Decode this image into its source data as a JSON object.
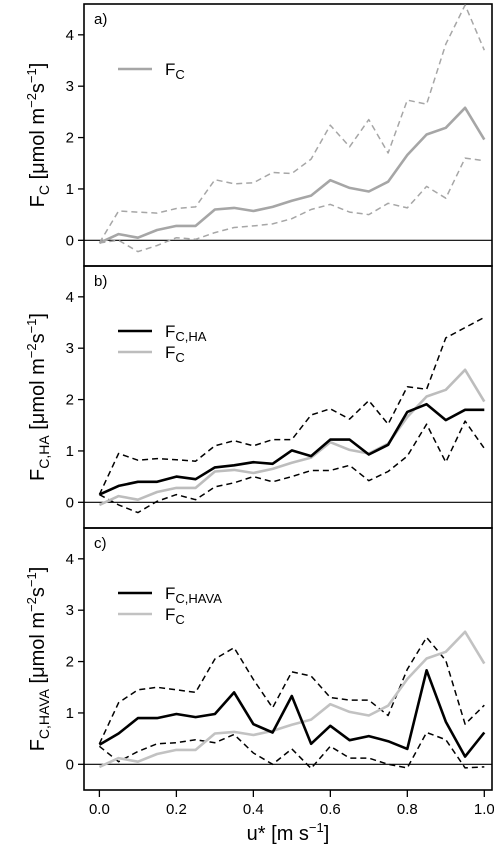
{
  "chart_data": [
    {
      "type": "line",
      "panel_label": "a)",
      "ylabel_main": "F",
      "ylabel_sub": "C",
      "ylabel_unit": "[μmol m",
      "ylabel_exp1": "−2",
      "ylabel_s": "s",
      "ylabel_exp2": "−1",
      "ylabel_close": "]",
      "ylim": [
        -0.5,
        4.6
      ],
      "yticks": [
        "0",
        "1",
        "2",
        "3",
        "4"
      ],
      "legend_position": "top-left",
      "x": [
        0.0,
        0.05,
        0.1,
        0.15,
        0.2,
        0.25,
        0.3,
        0.35,
        0.4,
        0.45,
        0.5,
        0.55,
        0.6,
        0.65,
        0.7,
        0.75,
        0.8,
        0.85,
        0.9,
        0.95,
        1.0
      ],
      "series": [
        {
          "name": "F",
          "name_sub": "C",
          "style": "solid",
          "color": "#a6a6a6",
          "in_legend": true,
          "values": [
            -0.05,
            0.12,
            0.05,
            0.2,
            0.28,
            0.28,
            0.6,
            0.63,
            0.57,
            0.65,
            0.77,
            0.87,
            1.17,
            1.02,
            0.95,
            1.14,
            1.66,
            2.06,
            2.19,
            2.58,
            1.96
          ]
        },
        {
          "name": "",
          "style": "dashed",
          "color": "#a6a6a6",
          "in_legend": false,
          "values": [
            -0.05,
            0.57,
            0.55,
            0.53,
            0.62,
            0.65,
            1.18,
            1.1,
            1.12,
            1.32,
            1.3,
            1.58,
            2.24,
            1.82,
            2.35,
            1.7,
            2.73,
            2.65,
            3.82,
            4.58,
            3.7
          ]
        },
        {
          "name": "",
          "style": "dashed",
          "color": "#a6a6a6",
          "in_legend": false,
          "values": [
            -0.05,
            0.0,
            -0.22,
            -0.1,
            0.05,
            0.02,
            0.15,
            0.25,
            0.28,
            0.32,
            0.42,
            0.6,
            0.7,
            0.55,
            0.5,
            0.72,
            0.63,
            1.05,
            0.82,
            1.6,
            1.55
          ]
        }
      ]
    },
    {
      "type": "line",
      "panel_label": "b)",
      "ylabel_main": "F",
      "ylabel_sub": "C,HA",
      "ylabel_unit": "[μmol m",
      "ylabel_exp1": "−2",
      "ylabel_s": "s",
      "ylabel_exp2": "−1",
      "ylabel_close": "]",
      "ylim": [
        -0.5,
        4.6
      ],
      "yticks": [
        "0",
        "1",
        "2",
        "3",
        "4"
      ],
      "legend_position": "top-left",
      "x": [
        0.0,
        0.05,
        0.1,
        0.15,
        0.2,
        0.25,
        0.3,
        0.35,
        0.4,
        0.45,
        0.5,
        0.55,
        0.6,
        0.65,
        0.7,
        0.75,
        0.8,
        0.85,
        0.9,
        0.95,
        1.0
      ],
      "series": [
        {
          "name": "F",
          "name_sub": "C,HA",
          "style": "solid",
          "color": "#000000",
          "in_legend": true,
          "values": [
            0.15,
            0.32,
            0.4,
            0.4,
            0.5,
            0.45,
            0.68,
            0.72,
            0.78,
            0.75,
            1.01,
            0.9,
            1.22,
            1.22,
            0.93,
            1.12,
            1.76,
            1.91,
            1.6,
            1.8,
            1.8
          ]
        },
        {
          "name": "F",
          "name_sub": "C",
          "style": "solid",
          "color": "#bdbdbd",
          "in_legend": true,
          "values": [
            -0.05,
            0.12,
            0.05,
            0.2,
            0.28,
            0.28,
            0.6,
            0.63,
            0.57,
            0.65,
            0.77,
            0.87,
            1.17,
            1.02,
            0.95,
            1.14,
            1.66,
            2.06,
            2.19,
            2.58,
            1.96
          ]
        },
        {
          "name": "",
          "style": "dashed",
          "color": "#000000",
          "in_legend": false,
          "values": [
            0.15,
            0.95,
            0.82,
            0.85,
            0.83,
            0.8,
            1.1,
            1.2,
            1.1,
            1.22,
            1.22,
            1.7,
            1.82,
            1.62,
            1.98,
            1.52,
            2.25,
            2.2,
            3.2,
            3.4,
            3.6
          ]
        },
        {
          "name": "",
          "style": "dashed",
          "color": "#000000",
          "in_legend": false,
          "values": [
            0.15,
            -0.05,
            -0.2,
            0.02,
            0.15,
            0.05,
            0.3,
            0.38,
            0.5,
            0.4,
            0.5,
            0.62,
            0.62,
            0.72,
            0.42,
            0.6,
            0.9,
            1.52,
            0.78,
            1.58,
            1.05
          ]
        }
      ]
    },
    {
      "type": "line",
      "panel_label": "c)",
      "ylabel_main": "F",
      "ylabel_sub": "C,HAVA",
      "ylabel_unit": "[μmol m",
      "ylabel_exp1": "−2",
      "ylabel_s": "s",
      "ylabel_exp2": "−1",
      "ylabel_close": "]",
      "ylim": [
        -0.5,
        4.6
      ],
      "yticks": [
        "0",
        "1",
        "2",
        "3",
        "4"
      ],
      "legend_position": "top-left",
      "x": [
        0.0,
        0.05,
        0.1,
        0.15,
        0.2,
        0.25,
        0.3,
        0.35,
        0.4,
        0.45,
        0.5,
        0.55,
        0.6,
        0.65,
        0.7,
        0.75,
        0.8,
        0.85,
        0.9,
        0.95,
        1.0
      ],
      "series": [
        {
          "name": "F",
          "name_sub": "C,HAVA",
          "style": "solid",
          "color": "#000000",
          "in_legend": true,
          "values": [
            0.38,
            0.6,
            0.9,
            0.9,
            0.98,
            0.92,
            0.98,
            1.4,
            0.78,
            0.62,
            1.33,
            0.4,
            0.75,
            0.47,
            0.55,
            0.45,
            0.3,
            1.83,
            0.83,
            0.15,
            0.62
          ]
        },
        {
          "name": "F",
          "name_sub": "C",
          "style": "solid",
          "color": "#c2c2c2",
          "in_legend": true,
          "values": [
            -0.05,
            0.12,
            0.05,
            0.2,
            0.28,
            0.28,
            0.6,
            0.63,
            0.57,
            0.65,
            0.77,
            0.87,
            1.17,
            1.02,
            0.95,
            1.14,
            1.66,
            2.06,
            2.19,
            2.58,
            1.96
          ]
        },
        {
          "name": "",
          "style": "dashed",
          "color": "#000000",
          "in_legend": false,
          "values": [
            0.4,
            1.2,
            1.45,
            1.5,
            1.45,
            1.4,
            2.05,
            2.27,
            1.65,
            1.1,
            1.8,
            1.72,
            1.3,
            1.25,
            1.25,
            0.95,
            1.85,
            2.47,
            2.02,
            0.78,
            1.15
          ]
        },
        {
          "name": "",
          "style": "dashed",
          "color": "#000000",
          "in_legend": false,
          "values": [
            0.35,
            0.05,
            0.25,
            0.4,
            0.42,
            0.48,
            0.42,
            0.58,
            0.22,
            0.0,
            0.3,
            -0.08,
            0.35,
            0.12,
            0.12,
            0.0,
            -0.07,
            0.62,
            0.48,
            -0.07,
            -0.05
          ]
        }
      ]
    }
  ],
  "x_axis": {
    "xlim": [
      -0.04,
      1.02
    ],
    "ticks": [
      {
        "value": 0.0,
        "label": "0.0"
      },
      {
        "value": 0.2,
        "label": "0.2"
      },
      {
        "value": 0.4,
        "label": "0.4"
      },
      {
        "value": 0.6,
        "label": "0.6"
      },
      {
        "value": 0.8,
        "label": "0.8"
      },
      {
        "value": 1.0,
        "label": "1.0"
      }
    ],
    "xlabel": "u* [m s",
    "xlabel_exp": "−1",
    "xlabel_close": "]"
  }
}
